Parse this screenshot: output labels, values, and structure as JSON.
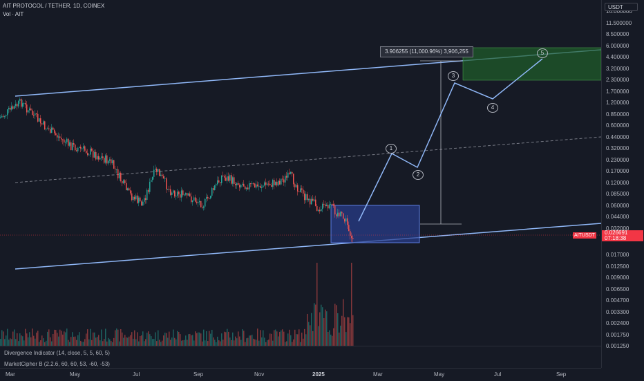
{
  "header": {
    "title": "AIT PROTOCOL / TETHER, 1D, COINEX",
    "volume": "Vol · AIT"
  },
  "right_axis": {
    "currency": "USDT",
    "ticks": [
      "16.000000",
      "11.500000",
      "8.500000",
      "6.000000",
      "4.400000",
      "3.200000",
      "2.300000",
      "1.700000",
      "1.200000",
      "0.850000",
      "0.600000",
      "0.440000",
      "0.320000",
      "0.230000",
      "0.170000",
      "0.120000",
      "0.085000",
      "0.060000",
      "0.044000",
      "0.032000",
      "0.017000",
      "0.012500",
      "0.009000",
      "0.006500",
      "0.004700",
      "0.003300",
      "0.002400",
      "0.001750",
      "0.001250"
    ],
    "price_symbol": "AITUSDT",
    "price_value": "0.026691",
    "price_timer": "07:18:38"
  },
  "bottom_axis": {
    "ticks": [
      "Mar",
      "May",
      "Jul",
      "Sep",
      "Nov",
      "2025",
      "Mar",
      "May",
      "Jul",
      "Sep"
    ]
  },
  "indicators": [
    "Divergence Indicator (14, close, 5, 5, 60, 5)",
    "MarketCipher B (2.2.6, 60, 60, 53, -60, -53)"
  ],
  "measure_label": "3.906255 (11,000.96%) 3,906,255",
  "waves": [
    "1",
    "2",
    "3",
    "4",
    "5"
  ],
  "colors": {
    "background": "#161a25",
    "trendline": "#90b8f8",
    "up": "#26a69a",
    "down": "#ef5350",
    "target_zone": "#1f5f2a",
    "entry_zone": "#2a3f8f"
  }
}
